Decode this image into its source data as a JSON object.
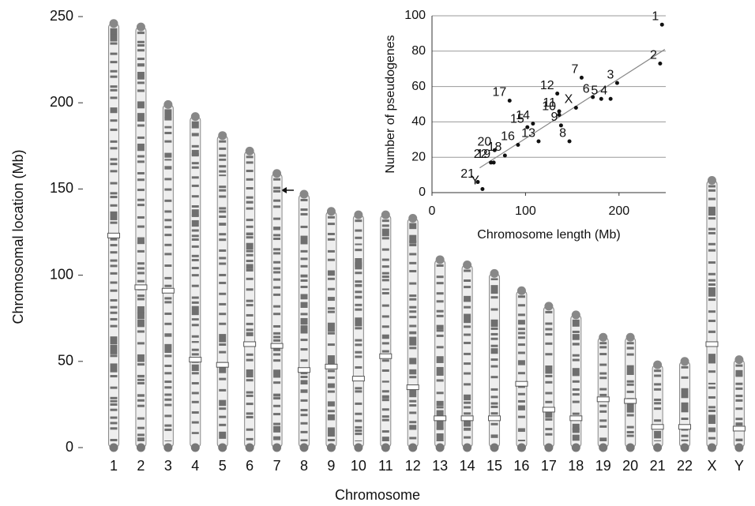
{
  "chart_data": [
    {
      "type": "bar",
      "ylabel": "Chromosomal location (Mb)",
      "xlabel": "Chromosome",
      "categories": [
        "1",
        "2",
        "3",
        "4",
        "5",
        "6",
        "7",
        "8",
        "9",
        "10",
        "11",
        "12",
        "13",
        "14",
        "15",
        "16",
        "17",
        "18",
        "19",
        "20",
        "21",
        "22",
        "X",
        "Y"
      ],
      "values": [
        246,
        244,
        199,
        192,
        181,
        172,
        159,
        147,
        137,
        135,
        135,
        133,
        109,
        106,
        101,
        91,
        82,
        77,
        64,
        64,
        48,
        50,
        155,
        51
      ],
      "centromeres": [
        123,
        93,
        91,
        51,
        48,
        60,
        59,
        45,
        47,
        40,
        53,
        35,
        17,
        17,
        17,
        37,
        22,
        17,
        28,
        27,
        12,
        12,
        60,
        11
      ],
      "color": "#eeeeee",
      "ylim": [
        0,
        250
      ],
      "yticks": [
        0,
        50,
        100,
        150,
        200,
        250
      ]
    },
    {
      "type": "scatter",
      "xlabel": "Chromosome length (Mb)",
      "ylabel": "Number of pseudogenes",
      "labels": [
        "1",
        "2",
        "3",
        "4",
        "5",
        "6",
        "7",
        "8",
        "9",
        "10",
        "11",
        "12",
        "13",
        "14",
        "15",
        "16",
        "17",
        "18",
        "19",
        "20",
        "21",
        "22",
        "X",
        "Y"
      ],
      "x": [
        246,
        244,
        198,
        191,
        181,
        172,
        160,
        147,
        138,
        136,
        136,
        134,
        114,
        108,
        102,
        92,
        83,
        78,
        66,
        67,
        49,
        63,
        154,
        54
      ],
      "y": [
        95,
        73,
        62,
        53,
        53,
        54,
        65,
        29,
        38,
        44,
        46,
        56,
        29,
        39,
        37,
        27,
        52,
        21,
        17,
        24,
        6,
        17,
        48,
        2
      ],
      "trendline": {
        "x": [
          51,
          249
        ],
        "y": [
          14,
          81
        ]
      },
      "color": "#111111",
      "xlim": [
        0,
        250
      ],
      "ylim": [
        0,
        100
      ],
      "xticks": [
        0,
        100,
        200
      ],
      "yticks": [
        0,
        20,
        40,
        60,
        80,
        100
      ],
      "grid": true
    }
  ]
}
